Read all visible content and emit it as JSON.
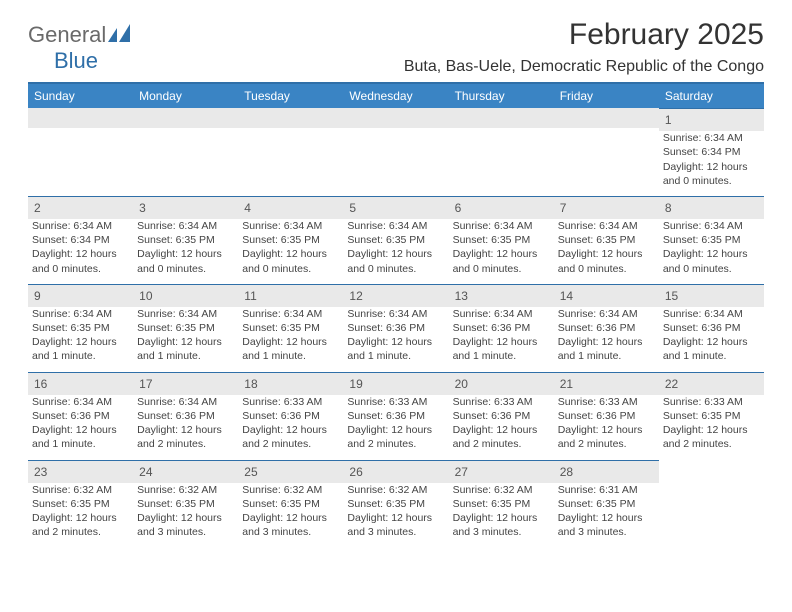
{
  "logo": {
    "word1": "General",
    "word2": "Blue",
    "color1": "#6a6a6a",
    "color2": "#2f6fa8"
  },
  "title": "February 2025",
  "subtitle": "Buta, Bas-Uele, Democratic Republic of the Congo",
  "colors": {
    "header_bg": "#3a84c4",
    "rule": "#2f6fa8",
    "daynum_bg": "#e9e9e9"
  },
  "day_headers": [
    "Sunday",
    "Monday",
    "Tuesday",
    "Wednesday",
    "Thursday",
    "Friday",
    "Saturday"
  ],
  "weeks": [
    [
      null,
      null,
      null,
      null,
      null,
      null,
      {
        "n": "1",
        "sr": "Sunrise: 6:34 AM",
        "ss": "Sunset: 6:34 PM",
        "dl": "Daylight: 12 hours and 0 minutes."
      }
    ],
    [
      {
        "n": "2",
        "sr": "Sunrise: 6:34 AM",
        "ss": "Sunset: 6:34 PM",
        "dl": "Daylight: 12 hours and 0 minutes."
      },
      {
        "n": "3",
        "sr": "Sunrise: 6:34 AM",
        "ss": "Sunset: 6:35 PM",
        "dl": "Daylight: 12 hours and 0 minutes."
      },
      {
        "n": "4",
        "sr": "Sunrise: 6:34 AM",
        "ss": "Sunset: 6:35 PM",
        "dl": "Daylight: 12 hours and 0 minutes."
      },
      {
        "n": "5",
        "sr": "Sunrise: 6:34 AM",
        "ss": "Sunset: 6:35 PM",
        "dl": "Daylight: 12 hours and 0 minutes."
      },
      {
        "n": "6",
        "sr": "Sunrise: 6:34 AM",
        "ss": "Sunset: 6:35 PM",
        "dl": "Daylight: 12 hours and 0 minutes."
      },
      {
        "n": "7",
        "sr": "Sunrise: 6:34 AM",
        "ss": "Sunset: 6:35 PM",
        "dl": "Daylight: 12 hours and 0 minutes."
      },
      {
        "n": "8",
        "sr": "Sunrise: 6:34 AM",
        "ss": "Sunset: 6:35 PM",
        "dl": "Daylight: 12 hours and 0 minutes."
      }
    ],
    [
      {
        "n": "9",
        "sr": "Sunrise: 6:34 AM",
        "ss": "Sunset: 6:35 PM",
        "dl": "Daylight: 12 hours and 1 minute."
      },
      {
        "n": "10",
        "sr": "Sunrise: 6:34 AM",
        "ss": "Sunset: 6:35 PM",
        "dl": "Daylight: 12 hours and 1 minute."
      },
      {
        "n": "11",
        "sr": "Sunrise: 6:34 AM",
        "ss": "Sunset: 6:35 PM",
        "dl": "Daylight: 12 hours and 1 minute."
      },
      {
        "n": "12",
        "sr": "Sunrise: 6:34 AM",
        "ss": "Sunset: 6:36 PM",
        "dl": "Daylight: 12 hours and 1 minute."
      },
      {
        "n": "13",
        "sr": "Sunrise: 6:34 AM",
        "ss": "Sunset: 6:36 PM",
        "dl": "Daylight: 12 hours and 1 minute."
      },
      {
        "n": "14",
        "sr": "Sunrise: 6:34 AM",
        "ss": "Sunset: 6:36 PM",
        "dl": "Daylight: 12 hours and 1 minute."
      },
      {
        "n": "15",
        "sr": "Sunrise: 6:34 AM",
        "ss": "Sunset: 6:36 PM",
        "dl": "Daylight: 12 hours and 1 minute."
      }
    ],
    [
      {
        "n": "16",
        "sr": "Sunrise: 6:34 AM",
        "ss": "Sunset: 6:36 PM",
        "dl": "Daylight: 12 hours and 1 minute."
      },
      {
        "n": "17",
        "sr": "Sunrise: 6:34 AM",
        "ss": "Sunset: 6:36 PM",
        "dl": "Daylight: 12 hours and 2 minutes."
      },
      {
        "n": "18",
        "sr": "Sunrise: 6:33 AM",
        "ss": "Sunset: 6:36 PM",
        "dl": "Daylight: 12 hours and 2 minutes."
      },
      {
        "n": "19",
        "sr": "Sunrise: 6:33 AM",
        "ss": "Sunset: 6:36 PM",
        "dl": "Daylight: 12 hours and 2 minutes."
      },
      {
        "n": "20",
        "sr": "Sunrise: 6:33 AM",
        "ss": "Sunset: 6:36 PM",
        "dl": "Daylight: 12 hours and 2 minutes."
      },
      {
        "n": "21",
        "sr": "Sunrise: 6:33 AM",
        "ss": "Sunset: 6:36 PM",
        "dl": "Daylight: 12 hours and 2 minutes."
      },
      {
        "n": "22",
        "sr": "Sunrise: 6:33 AM",
        "ss": "Sunset: 6:35 PM",
        "dl": "Daylight: 12 hours and 2 minutes."
      }
    ],
    [
      {
        "n": "23",
        "sr": "Sunrise: 6:32 AM",
        "ss": "Sunset: 6:35 PM",
        "dl": "Daylight: 12 hours and 2 minutes."
      },
      {
        "n": "24",
        "sr": "Sunrise: 6:32 AM",
        "ss": "Sunset: 6:35 PM",
        "dl": "Daylight: 12 hours and 3 minutes."
      },
      {
        "n": "25",
        "sr": "Sunrise: 6:32 AM",
        "ss": "Sunset: 6:35 PM",
        "dl": "Daylight: 12 hours and 3 minutes."
      },
      {
        "n": "26",
        "sr": "Sunrise: 6:32 AM",
        "ss": "Sunset: 6:35 PM",
        "dl": "Daylight: 12 hours and 3 minutes."
      },
      {
        "n": "27",
        "sr": "Sunrise: 6:32 AM",
        "ss": "Sunset: 6:35 PM",
        "dl": "Daylight: 12 hours and 3 minutes."
      },
      {
        "n": "28",
        "sr": "Sunrise: 6:31 AM",
        "ss": "Sunset: 6:35 PM",
        "dl": "Daylight: 12 hours and 3 minutes."
      },
      null
    ]
  ]
}
